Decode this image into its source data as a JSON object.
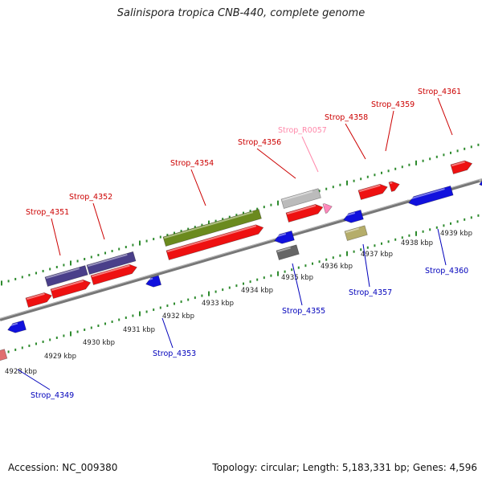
{
  "title": "Salinispora tropica CNB-440, complete genome",
  "footer": {
    "accession": "Accession: NC_009380",
    "summary": "Topology: circular; Length: 5,183,331 bp; Genes: 4,596"
  },
  "colors": {
    "backbone": "#888888",
    "tick": "#2e8b2e",
    "forward_label": "#cc0000",
    "reverse_label": "#0000bb",
    "rna_label": "#ff88aa",
    "kbp_text": "#222222"
  },
  "scale": {
    "unit": "kbp",
    "labels": [
      "4928 kbp",
      "4929 kbp",
      "4930 kbp",
      "4931 kbp",
      "4932 kbp",
      "4933 kbp",
      "4934 kbp",
      "4935 kbp",
      "4936 kbp",
      "4937 kbp",
      "4938 kbp",
      "4939 kbp"
    ]
  },
  "gene_labels": [
    {
      "name": "Strop_4351",
      "strand": "forward"
    },
    {
      "name": "Strop_4352",
      "strand": "forward"
    },
    {
      "name": "Strop_4354",
      "strand": "forward"
    },
    {
      "name": "Strop_4356",
      "strand": "forward"
    },
    {
      "name": "Strop_R0057",
      "strand": "rna"
    },
    {
      "name": "Strop_4358",
      "strand": "forward"
    },
    {
      "name": "Strop_4359",
      "strand": "forward"
    },
    {
      "name": "Strop_4361",
      "strand": "forward"
    },
    {
      "name": "Strop_4349",
      "strand": "reverse"
    },
    {
      "name": "Strop_4353",
      "strand": "reverse"
    },
    {
      "name": "Strop_4355",
      "strand": "reverse"
    },
    {
      "name": "Strop_4357",
      "strand": "reverse"
    },
    {
      "name": "Strop_4360",
      "strand": "reverse"
    }
  ]
}
